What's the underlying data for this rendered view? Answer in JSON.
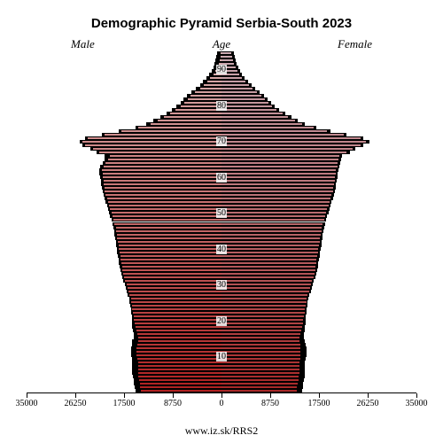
{
  "title": "Demographic Pyramid Serbia-South 2023",
  "title_fontsize": 15,
  "label_male": "Male",
  "label_female": "Female",
  "label_age": "Age",
  "sublabel_fontsize": 13,
  "credit": "www.iz.sk/RRS2",
  "chart": {
    "type": "population-pyramid",
    "background_color": "#ffffff",
    "shadow_color": "#000000",
    "color_male_top": "#d9b0b0",
    "color_male_bottom": "#b02020",
    "color_female_top": "#c9a8b0",
    "color_female_bottom": "#a82828",
    "bar_border_color": "#000000",
    "bar_border_width": 0.4,
    "x_max": 35000,
    "x_ticks_left": [
      35000,
      26250,
      17500,
      8750,
      0
    ],
    "x_ticks_right": [
      0,
      8750,
      17500,
      26250,
      35000
    ],
    "x_tick_fontsize": 10,
    "age_min": 0,
    "age_max": 95,
    "age_ticks": [
      10,
      20,
      30,
      40,
      50,
      60,
      70,
      80,
      90
    ],
    "age_tick_fontsize": 10,
    "axis_color": "#000000",
    "male_current": [
      14500,
      14600,
      14700,
      14800,
      14900,
      15000,
      15000,
      15000,
      15000,
      15100,
      15200,
      15200,
      15200,
      15100,
      15000,
      15000,
      15100,
      15300,
      15500,
      15600,
      15700,
      15800,
      15900,
      16000,
      16100,
      16200,
      16300,
      16500,
      16700,
      16900,
      17100,
      17300,
      17500,
      17700,
      17800,
      17900,
      18000,
      18100,
      18200,
      18300,
      18400,
      18500,
      18600,
      18700,
      18800,
      18900,
      19000,
      19200,
      19400,
      19600,
      19800,
      20000,
      20200,
      20400,
      20600,
      20800,
      21000,
      21000,
      21100,
      21200,
      21300,
      21400,
      21500,
      21200,
      20800,
      20400,
      20000,
      22000,
      23000,
      24500,
      25000,
      24000,
      21000,
      18000,
      15000,
      12800,
      11500,
      10300,
      9200,
      8200,
      7400,
      6700,
      6100,
      5500,
      4700,
      3900,
      3200,
      2600,
      2000,
      1500,
      1100,
      800,
      550,
      350,
      200,
      100
    ],
    "male_previous": [
      15500,
      15600,
      15700,
      15800,
      15900,
      16000,
      16000,
      16000,
      16000,
      16100,
      16200,
      16200,
      16200,
      16100,
      16000,
      15800,
      15800,
      15900,
      16000,
      16100,
      16100,
      16100,
      16200,
      16300,
      16400,
      16500,
      16600,
      16800,
      17000,
      17200,
      17400,
      17600,
      17800,
      18000,
      18200,
      18300,
      18400,
      18500,
      18600,
      18700,
      18800,
      18900,
      19000,
      19100,
      19200,
      19300,
      19400,
      19600,
      19800,
      20000,
      20200,
      20400,
      20600,
      20800,
      21000,
      21200,
      21400,
      21500,
      21600,
      21700,
      21800,
      21900,
      22000,
      21800,
      21400,
      21000,
      21000,
      22500,
      23500,
      25000,
      25500,
      24500,
      21500,
      18500,
      15500,
      13500,
      12200,
      11000,
      9900,
      8900,
      8100,
      7400,
      6800,
      6200,
      5400,
      4600,
      3900,
      3300,
      2700,
      2200,
      1800,
      1500,
      1250,
      1050,
      900,
      800
    ],
    "female_current": [
      13500,
      13600,
      13700,
      13800,
      13900,
      14000,
      14000,
      14000,
      14000,
      14100,
      14200,
      14200,
      14200,
      14100,
      14000,
      14000,
      14100,
      14300,
      14500,
      14600,
      14700,
      14800,
      14900,
      15000,
      15100,
      15200,
      15300,
      15500,
      15700,
      15900,
      16100,
      16300,
      16500,
      16700,
      16800,
      16900,
      17000,
      17100,
      17200,
      17300,
      17400,
      17500,
      17600,
      17700,
      17800,
      17900,
      18000,
      18200,
      18400,
      18600,
      18800,
      19000,
      19200,
      19400,
      19600,
      19800,
      20000,
      20100,
      20200,
      20300,
      20400,
      20500,
      20600,
      20800,
      20900,
      21000,
      21200,
      22500,
      23500,
      25000,
      26000,
      25000,
      22000,
      19000,
      16500,
      14500,
      13200,
      12000,
      10900,
      9900,
      9100,
      8400,
      7800,
      7200,
      6400,
      5600,
      4900,
      4300,
      3700,
      3200,
      2800,
      2500,
      2250,
      2050,
      1900,
      1800
    ],
    "female_previous": [
      14500,
      14600,
      14700,
      14800,
      14900,
      15000,
      15000,
      15000,
      15000,
      15100,
      15200,
      15200,
      15200,
      15100,
      15000,
      14800,
      14800,
      14900,
      15000,
      15100,
      15100,
      15100,
      15200,
      15300,
      15400,
      15500,
      15600,
      15800,
      16000,
      16200,
      16400,
      16600,
      16800,
      17000,
      17200,
      17300,
      17400,
      17500,
      17600,
      17700,
      17800,
      17900,
      18000,
      18100,
      18200,
      18300,
      18400,
      18600,
      18800,
      19000,
      19200,
      19400,
      19600,
      19800,
      20000,
      20200,
      20400,
      20500,
      20600,
      20700,
      20800,
      20900,
      21000,
      21200,
      21300,
      21400,
      21600,
      23000,
      24000,
      25500,
      26500,
      25500,
      22500,
      19500,
      17000,
      15000,
      13700,
      12500,
      11400,
      10400,
      9600,
      8900,
      8300,
      7700,
      6900,
      6100,
      5400,
      4800,
      4200,
      3700,
      3300,
      3000,
      2750,
      2550,
      2400,
      2300
    ]
  }
}
